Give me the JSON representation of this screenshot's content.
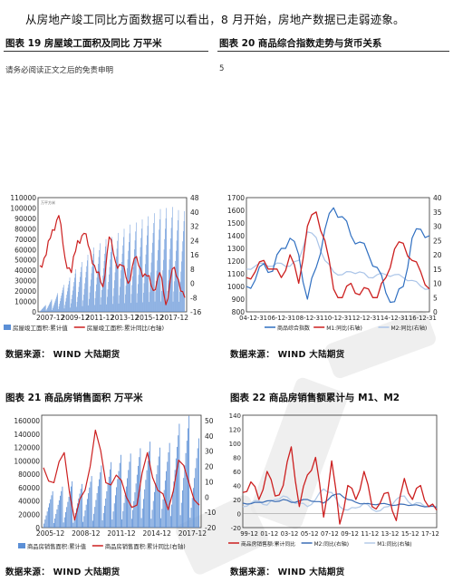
{
  "lead_text": "从房地产竣工同比方面数据可以看出，8 月开始，房地产数据已走弱迹象。",
  "disclaimer": "请务必阅读正文之后的免责申明",
  "page_number": "5",
  "figures": {
    "f19": {
      "title": "图表 19  房屋竣工面积及同比    万平米",
      "source": "数据来源：  WIND   大陆期货"
    },
    "f20": {
      "title": "图表 20    商品综合指数走势与货币关系",
      "source": "数据来源：  WIND   大陆期货"
    },
    "f21": {
      "title": "图表 21  商品房销售面积    万平米",
      "source": "数据来源：  WIND   大陆期货"
    },
    "f22": {
      "title": "图表 22    商品房销售额累计与 M1、M2",
      "source": "数据来源：  WIND   大陆期货"
    }
  },
  "chart_data": [
    {
      "type": "bar",
      "id": "f19",
      "y_left_ticks": [
        "110000",
        "100000",
        "90000",
        "80000",
        "70000",
        "60000",
        "50000",
        "40000",
        "30000",
        "20000",
        "10000",
        "0"
      ],
      "y_right_ticks": [
        "48",
        "40",
        "32",
        "24",
        "16",
        "8",
        "0",
        "-8",
        "-16"
      ],
      "x_ticks": [
        "2007-12",
        "2009-12",
        "2011-12",
        "2013-12",
        "2015-12",
        "2017-12"
      ],
      "ylim_left": [
        0,
        110000
      ],
      "ylim_right": [
        -16,
        48
      ],
      "series": [
        {
          "name": "房屋竣工面积:累计值",
          "color": "#5b8fd6"
        },
        {
          "name": "房屋竣工面积:累计同比(右轴)",
          "color": "#cc1f1f"
        }
      ],
      "bar_peaks": [
        6500,
        12000,
        18000,
        26000,
        33000,
        41000,
        48000,
        55000,
        62000,
        66000,
        70000,
        72000,
        76000,
        80000,
        84000,
        86000,
        89000,
        92000,
        95000,
        99000,
        100000,
        101000,
        98000,
        97000
      ],
      "line_values": [
        10,
        16,
        30,
        38,
        14,
        6,
        24,
        28,
        18,
        6,
        -2,
        26,
        12,
        10,
        0,
        14,
        8,
        4,
        -4,
        6,
        -12,
        8,
        2,
        -8
      ]
    },
    {
      "type": "line",
      "id": "f20",
      "y_left_ticks": [
        "1700",
        "1600",
        "1500",
        "1400",
        "1300",
        "1200",
        "1100",
        "1000",
        "900",
        "800"
      ],
      "y_right_ticks": [
        "40",
        "35",
        "30",
        "25",
        "20",
        "15",
        "10",
        "5",
        "0"
      ],
      "x_ticks": [
        "04-12-31",
        "06-12-31",
        "08-12-31",
        "10-12-31",
        "12-12-31",
        "14-12-31",
        "16-12-31"
      ],
      "ylim_left": [
        800,
        1700
      ],
      "ylim_right": [
        0,
        40
      ],
      "series": [
        {
          "name": "商品综合指数",
          "color": "#2f6fc1"
        },
        {
          "name": "M1:同比(右轴)",
          "color": "#cc1f1f"
        },
        {
          "name": "M2:同比(右轴)",
          "color": "#aac4e8"
        }
      ],
      "index_values": [
        1000,
        1050,
        1180,
        1120,
        1300,
        1380,
        1250,
        900,
        1150,
        1450,
        1620,
        1550,
        1400,
        1350,
        1250,
        1150,
        950,
        880,
        1000,
        1380,
        1450,
        1400
      ],
      "m1_values": [
        12,
        14,
        18,
        15,
        12,
        20,
        10,
        30,
        35,
        25,
        8,
        5,
        10,
        6,
        8,
        5,
        12,
        22,
        24,
        18,
        14,
        8
      ],
      "m2_values": [
        15,
        16,
        17,
        16,
        17,
        16,
        18,
        28,
        26,
        18,
        14,
        13,
        14,
        14,
        12,
        13,
        13,
        13,
        12,
        11,
        9,
        8
      ]
    },
    {
      "type": "bar",
      "id": "f21",
      "y_left_ticks": [
        "160000",
        "140000",
        "120000",
        "100000",
        "80000",
        "60000",
        "40000",
        "20000",
        "0"
      ],
      "y_right_ticks": [
        "50",
        "40",
        "30",
        "20",
        "10",
        "0",
        "-10",
        "-20"
      ],
      "x_ticks": [
        "2005-12",
        "2008-12",
        "2011-12",
        "2014-12",
        "2017-12"
      ],
      "ylim_left": [
        0,
        170000
      ],
      "ylim_right": [
        -20,
        55
      ],
      "series": [
        {
          "name": "商品房销售面积:累计值",
          "color": "#5b8fd6"
        },
        {
          "name": "商品房销售面积:累计同比(右轴)",
          "color": "#cc1f1f"
        }
      ],
      "bar_peaks": [
        55000,
        62000,
        70000,
        66000,
        78000,
        94000,
        99000,
        110000,
        112000,
        120000,
        130000,
        121000,
        128000,
        157000,
        169000,
        135000
      ],
      "line_values": [
        20,
        10,
        30,
        -15,
        5,
        45,
        10,
        15,
        0,
        -5,
        30,
        5,
        -8,
        25,
        10,
        -5
      ]
    },
    {
      "type": "line",
      "id": "f22",
      "y_ticks": [
        "140",
        "120",
        "100",
        "80",
        "60",
        "40",
        "20",
        "0",
        "-20"
      ],
      "x_ticks": [
        "99-12",
        "01-12",
        "03-12",
        "05-12",
        "07-12",
        "09-12",
        "11-12",
        "13-12",
        "15-12",
        "17-12"
      ],
      "ylim": [
        -20,
        140
      ],
      "series": [
        {
          "name": "商品房销售额:累计同比",
          "color": "#cc1f1f"
        },
        {
          "name": "M2:同比(右轴)",
          "color": "#3b6db5"
        },
        {
          "name": "M1:同比(右轴)",
          "color": "#b4cbe8"
        }
      ],
      "sales_values": [
        30,
        45,
        20,
        60,
        25,
        40,
        95,
        10,
        55,
        80,
        -5,
        75,
        -15,
        40,
        20,
        60,
        10,
        15,
        30,
        -10,
        50,
        20,
        40,
        10,
        5
      ],
      "m2_values": [
        15,
        14,
        16,
        18,
        17,
        20,
        16,
        18,
        20,
        17,
        15,
        25,
        28,
        20,
        16,
        14,
        13,
        14,
        13,
        12,
        13,
        12,
        11,
        10,
        9
      ],
      "m1_values": [
        10,
        15,
        18,
        12,
        20,
        25,
        18,
        15,
        10,
        20,
        35,
        30,
        10,
        5,
        8,
        15,
        6,
        4,
        10,
        20,
        25,
        12,
        15,
        10,
        8
      ]
    }
  ]
}
